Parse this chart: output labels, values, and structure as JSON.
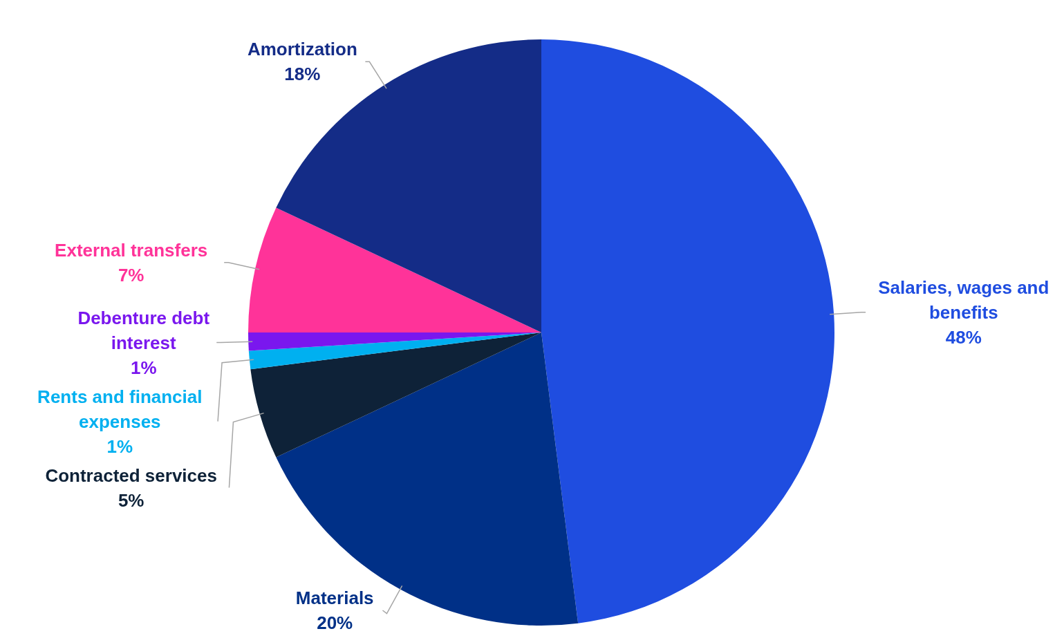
{
  "chart_data": {
    "type": "pie",
    "categories": [
      "Salaries, wages and benefits",
      "Materials",
      "Contracted services",
      "Rents and financial expenses",
      "Debenture debt interest",
      "External transfers",
      "Amortization"
    ],
    "values": [
      48,
      20,
      5,
      1,
      1,
      7,
      18
    ],
    "value_labels": [
      "48%",
      "20%",
      "5%",
      "1%",
      "1%",
      "7%",
      "18%"
    ],
    "colors": [
      "#1f4de0",
      "#003087",
      "#0e2238",
      "#00b0f0",
      "#7a17ee",
      "#ff3399",
      "#142c87"
    ]
  }
}
